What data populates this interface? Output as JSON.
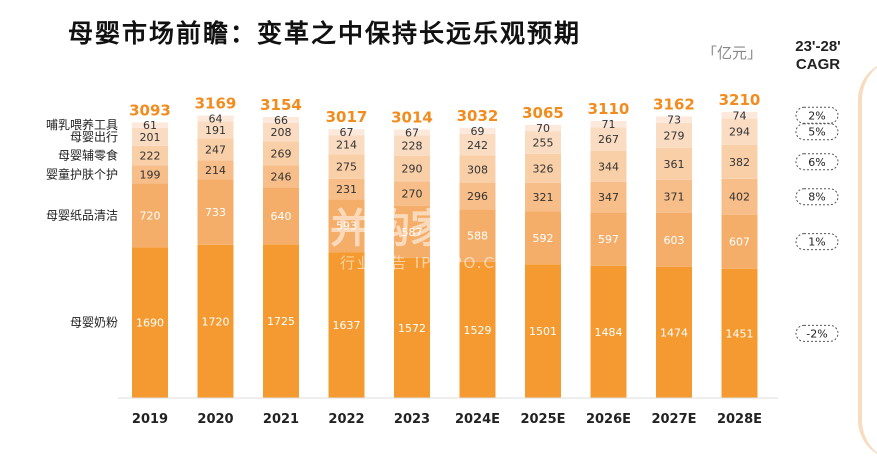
{
  "title": "母婴市场前瞻：变革之中保持长远乐观预期",
  "unit": "「亿元」",
  "cagr_header": [
    "23'-28'",
    "CAGR"
  ],
  "watermark": {
    "main": "并购家",
    "sub": "行业报告 IPOIPO.CN"
  },
  "colors": {
    "formula": "#f59a30",
    "paper": "#f5ae6a",
    "skincare": "#f7be8a",
    "food": "#f9cfa8",
    "outing": "#fadcc2",
    "feeding": "#fce9dc",
    "total_label": "#f28c1e",
    "inner_label_dark": "#333333",
    "inner_label_light": "#ffffff"
  },
  "chart_data": {
    "type": "bar",
    "stacked": true,
    "categories": [
      "2019",
      "2020",
      "2021",
      "2022",
      "2023",
      "2024E",
      "2025E",
      "2026E",
      "2027E",
      "2028E"
    ],
    "series": [
      {
        "name": "母婴奶粉",
        "values": [
          1690,
          1720,
          1725,
          1637,
          1572,
          1529,
          1501,
          1484,
          1474,
          1451
        ],
        "cagr": "-2%"
      },
      {
        "name": "母婴纸品清洁",
        "values": [
          720,
          733,
          640,
          593,
          587,
          588,
          592,
          597,
          603,
          607
        ],
        "cagr": "1%"
      },
      {
        "name": "婴童护肤个护",
        "values": [
          199,
          214,
          246,
          231,
          270,
          296,
          321,
          347,
          371,
          402
        ],
        "cagr": "8%"
      },
      {
        "name": "母婴辅零食",
        "values": [
          222,
          247,
          269,
          275,
          290,
          308,
          326,
          344,
          361,
          382
        ],
        "cagr": "6%"
      },
      {
        "name": "母婴出行",
        "values": [
          201,
          191,
          208,
          214,
          228,
          242,
          255,
          267,
          279,
          294
        ],
        "cagr": "5%"
      },
      {
        "name": "哺乳喂养工具",
        "values": [
          61,
          64,
          66,
          67,
          67,
          69,
          70,
          71,
          73,
          74
        ],
        "cagr": "2%"
      }
    ],
    "totals": [
      3093,
      3169,
      3154,
      3017,
      3014,
      3032,
      3065,
      3110,
      3162,
      3210
    ],
    "xlabel": "",
    "ylabel": "",
    "ylim": [
      0,
      3300
    ],
    "grid": false,
    "legend": "left"
  }
}
